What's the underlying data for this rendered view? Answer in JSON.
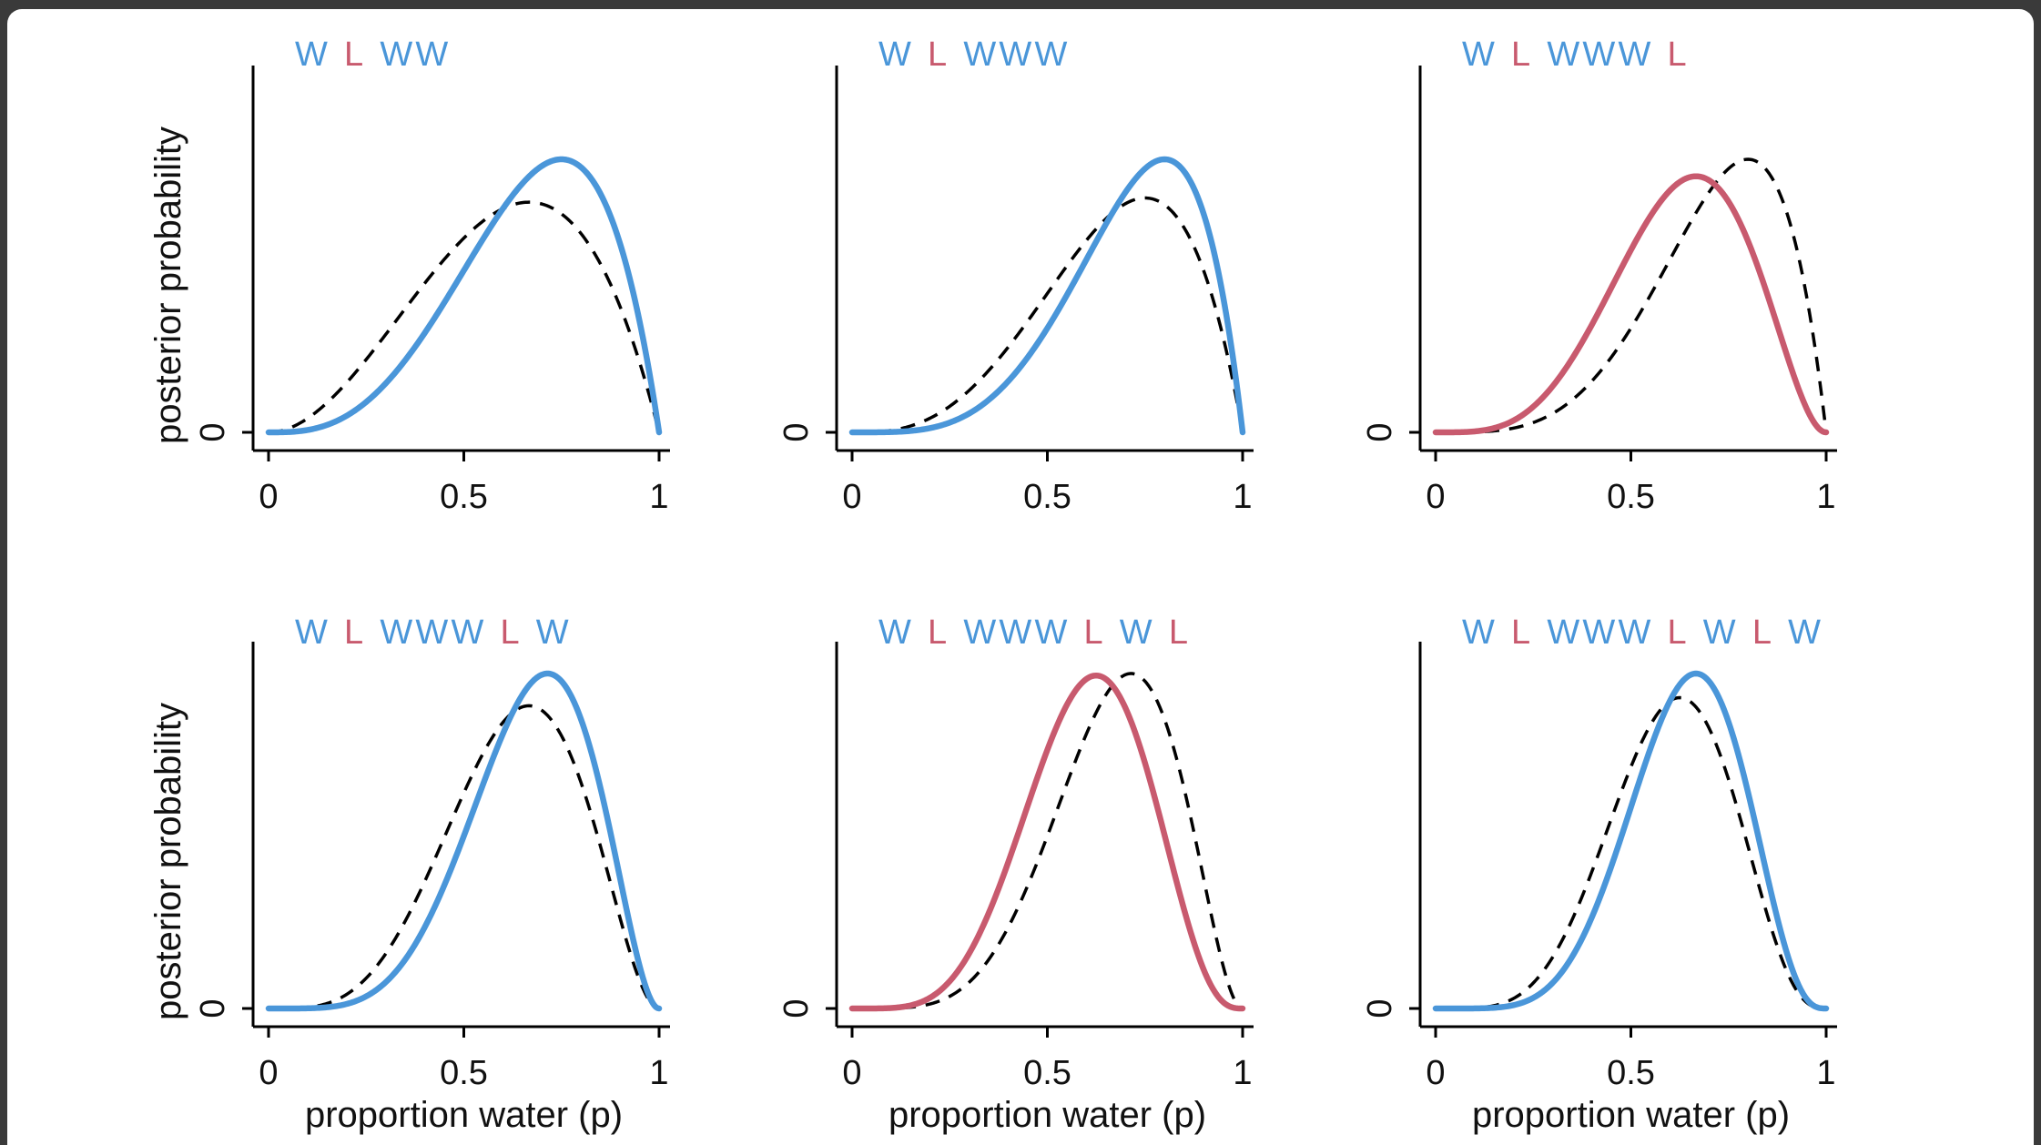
{
  "colors": {
    "water": "#4a96d9",
    "land": "#c85a6e",
    "previous": "#000000",
    "window_frame": "#3a3a3a"
  },
  "chart_data": [
    {
      "type": "line",
      "title_sequence": [
        "W",
        "L",
        "W",
        "W"
      ],
      "xlabel": "",
      "ylabel": "posterior probability",
      "xlim": [
        0,
        1
      ],
      "x_ticks": [
        "0",
        "0.5",
        "1"
      ],
      "y_ticks": [
        "0"
      ],
      "series": [
        {
          "style": "solid",
          "color": "#4a96d9",
          "distribution": "Beta(4,2)",
          "w": 3,
          "l": 1
        },
        {
          "style": "dashed",
          "color": "#000000",
          "distribution": "Beta(3,2)",
          "w": 2,
          "l": 1
        }
      ]
    },
    {
      "type": "line",
      "title_sequence": [
        "W",
        "L",
        "W",
        "W",
        "W"
      ],
      "xlabel": "",
      "ylabel": "",
      "xlim": [
        0,
        1
      ],
      "x_ticks": [
        "0",
        "0.5",
        "1"
      ],
      "y_ticks": [
        "0"
      ],
      "series": [
        {
          "style": "solid",
          "color": "#4a96d9",
          "distribution": "Beta(5,2)",
          "w": 4,
          "l": 1
        },
        {
          "style": "dashed",
          "color": "#000000",
          "distribution": "Beta(4,2)",
          "w": 3,
          "l": 1
        }
      ]
    },
    {
      "type": "line",
      "title_sequence": [
        "W",
        "L",
        "W",
        "W",
        "W",
        "L"
      ],
      "xlabel": "",
      "ylabel": "",
      "xlim": [
        0,
        1
      ],
      "x_ticks": [
        "0",
        "0.5",
        "1"
      ],
      "y_ticks": [
        "0"
      ],
      "series": [
        {
          "style": "solid",
          "color": "#c85a6e",
          "distribution": "Beta(5,3)",
          "w": 4,
          "l": 2
        },
        {
          "style": "dashed",
          "color": "#000000",
          "distribution": "Beta(5,2)",
          "w": 4,
          "l": 1
        }
      ]
    },
    {
      "type": "line",
      "title_sequence": [
        "W",
        "L",
        "W",
        "W",
        "W",
        "L",
        "W"
      ],
      "xlabel": "proportion water (p)",
      "ylabel": "posterior probability",
      "xlim": [
        0,
        1
      ],
      "x_ticks": [
        "0",
        "0.5",
        "1"
      ],
      "y_ticks": [
        "0"
      ],
      "series": [
        {
          "style": "solid",
          "color": "#4a96d9",
          "distribution": "Beta(6,3)",
          "w": 5,
          "l": 2
        },
        {
          "style": "dashed",
          "color": "#000000",
          "distribution": "Beta(5,3)",
          "w": 4,
          "l": 2
        }
      ]
    },
    {
      "type": "line",
      "title_sequence": [
        "W",
        "L",
        "W",
        "W",
        "W",
        "L",
        "W",
        "L"
      ],
      "xlabel": "proportion water (p)",
      "ylabel": "",
      "xlim": [
        0,
        1
      ],
      "x_ticks": [
        "0",
        "0.5",
        "1"
      ],
      "y_ticks": [
        "0"
      ],
      "series": [
        {
          "style": "solid",
          "color": "#c85a6e",
          "distribution": "Beta(6,4)",
          "w": 5,
          "l": 3
        },
        {
          "style": "dashed",
          "color": "#000000",
          "distribution": "Beta(6,3)",
          "w": 5,
          "l": 2
        }
      ]
    },
    {
      "type": "line",
      "title_sequence": [
        "W",
        "L",
        "W",
        "W",
        "W",
        "L",
        "W",
        "L",
        "W"
      ],
      "xlabel": "proportion water (p)",
      "ylabel": "",
      "xlim": [
        0,
        1
      ],
      "x_ticks": [
        "0",
        "0.5",
        "1"
      ],
      "y_ticks": [
        "0"
      ],
      "series": [
        {
          "style": "solid",
          "color": "#4a96d9",
          "distribution": "Beta(7,4)",
          "w": 6,
          "l": 3
        },
        {
          "style": "dashed",
          "color": "#000000",
          "distribution": "Beta(6,4)",
          "w": 5,
          "l": 3
        }
      ]
    }
  ]
}
